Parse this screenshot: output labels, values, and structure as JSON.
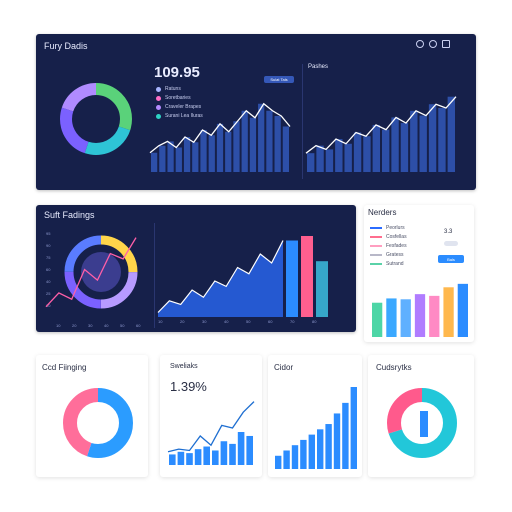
{
  "top_panel": {
    "title": "Fury Dadis",
    "metric": "109.95",
    "chart_label": "Pashes",
    "button_label": "Sulat Tals",
    "legend": [
      {
        "label": "Ratuns",
        "color": "#a8b4ff"
      },
      {
        "label": "Soretbaries",
        "color": "#ff6ec7"
      },
      {
        "label": "Craveler Brapes",
        "color": "#b48bff"
      },
      {
        "label": "Surani Lea Iluras",
        "color": "#2ed3c5"
      }
    ],
    "icons": [
      "download-icon",
      "info-icon",
      "menu-icon"
    ],
    "donut": {
      "segments": [
        {
          "value": 30,
          "color": "#5ad27a"
        },
        {
          "value": 25,
          "color": "#2ec4d6"
        },
        {
          "value": 25,
          "color": "#7b61ff"
        },
        {
          "value": 20,
          "color": "#b08bff"
        }
      ]
    },
    "bars_left": [
      22,
      30,
      35,
      28,
      40,
      34,
      48,
      42,
      55,
      46,
      58,
      70,
      62,
      78,
      70,
      64,
      52
    ],
    "bars_right": [
      20,
      28,
      24,
      35,
      30,
      42,
      38,
      50,
      45,
      58,
      52,
      65,
      60,
      72,
      68,
      80
    ]
  },
  "mid_panel": {
    "title": "Suft Fadings",
    "y_ticks": [
      "95",
      "90",
      "75",
      "60",
      "40",
      "25",
      "10"
    ],
    "x_ticks_left": [
      "10",
      "20",
      "30",
      "40",
      "50",
      "60"
    ],
    "x_ticks_right": [
      "10",
      "20",
      "30",
      "40",
      "50",
      "60",
      "70",
      "80"
    ],
    "area_values": [
      5,
      18,
      14,
      30,
      22,
      40,
      34,
      55,
      48,
      70,
      60,
      85
    ],
    "tall_bars": [
      {
        "value": 85,
        "color": "#2b8cff"
      },
      {
        "value": 90,
        "color": "#ff5f8f"
      },
      {
        "value": 62,
        "color": "#36a7c9"
      }
    ]
  },
  "side_card": {
    "title": "Nerders",
    "value": "3.3",
    "toggle_label": "Bals",
    "legend": [
      {
        "label": "Peorlurs",
        "color": "#2b6cff"
      },
      {
        "label": "Cosfellas",
        "color": "#ff6e8f"
      },
      {
        "label": "Fesfades",
        "color": "#ff9ec0"
      },
      {
        "label": "Gratess",
        "color": "#b8b8c8"
      },
      {
        "label": "Sutrand",
        "color": "#5ad2a8"
      }
    ],
    "bars": [
      {
        "value": 40,
        "color": "#4dd6a6"
      },
      {
        "value": 45,
        "color": "#3aa8ff"
      },
      {
        "value": 44,
        "color": "#5fb0ff"
      },
      {
        "value": 50,
        "color": "#b07cff"
      },
      {
        "value": 48,
        "color": "#ff8ac4"
      },
      {
        "value": 58,
        "color": "#ffb84d"
      },
      {
        "value": 62,
        "color": "#2b8cff"
      }
    ]
  },
  "bottom": {
    "card1": {
      "title": "Ccd Fiinging",
      "segments": [
        {
          "value": 55,
          "color": "#2b9cff"
        },
        {
          "value": 45,
          "color": "#ff6e9a"
        }
      ]
    },
    "card2": {
      "title": "Sweliaks",
      "metric": "1.39%",
      "bars": [
        8,
        10,
        9,
        12,
        14,
        11,
        18,
        16,
        25,
        22
      ],
      "line": [
        10,
        12,
        11,
        22,
        15,
        30,
        28,
        40,
        48
      ]
    },
    "card3": {
      "title": "Cidor",
      "bars": [
        10,
        14,
        18,
        22,
        26,
        30,
        34,
        42,
        50,
        62
      ]
    },
    "card4": {
      "title": "Cudsrytks",
      "segments": [
        {
          "value": 70,
          "color": "#22c7d9"
        },
        {
          "value": 30,
          "color": "#ff5a8c"
        }
      ]
    }
  }
}
